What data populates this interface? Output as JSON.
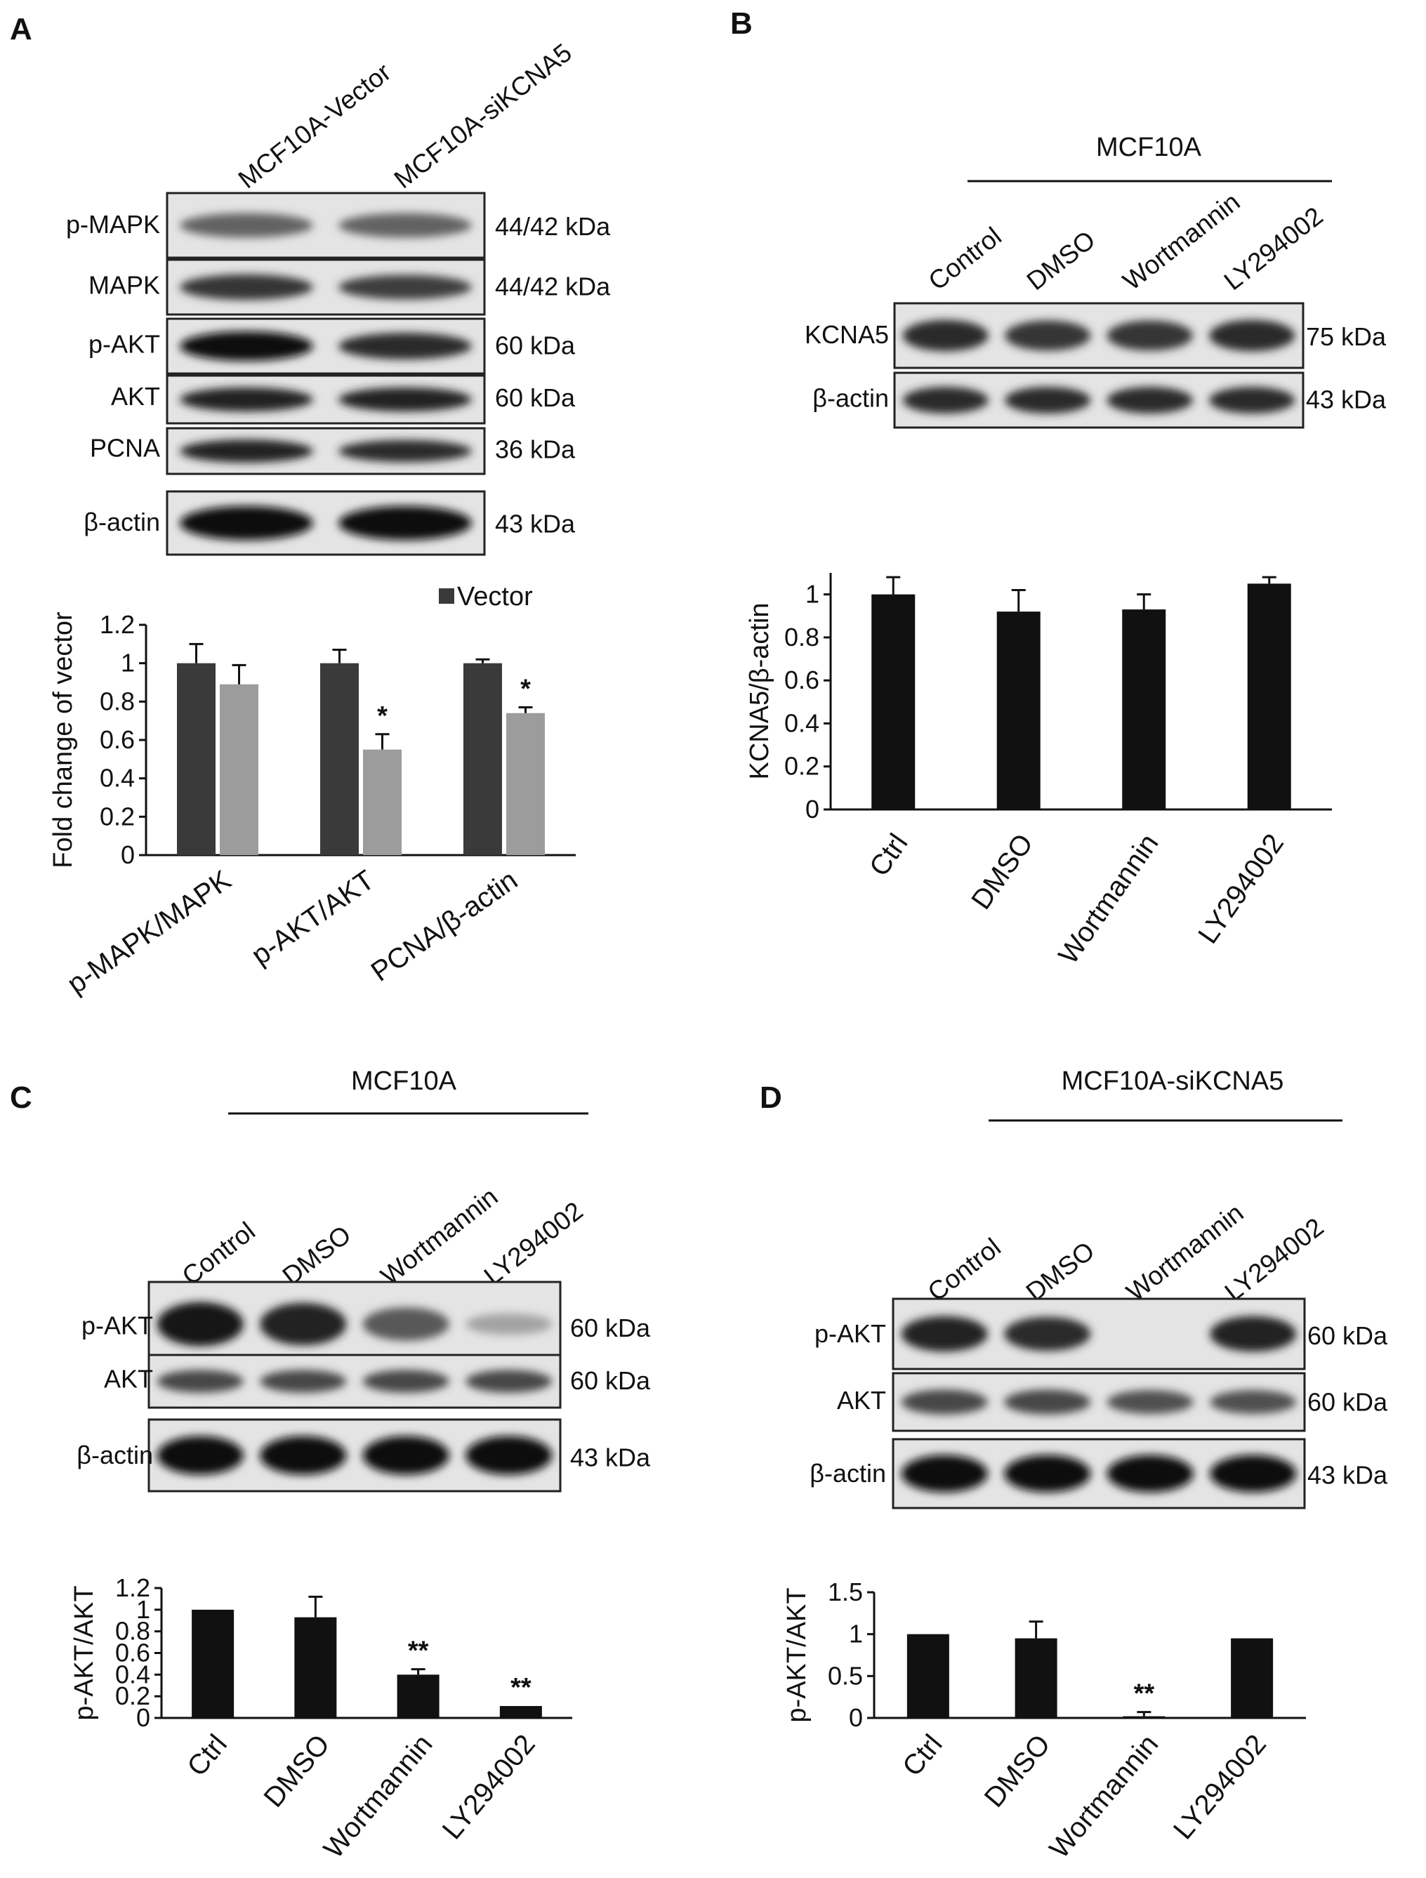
{
  "panels": {
    "A": {
      "label": "A",
      "lanes": [
        "MCF10A-Vector",
        "MCF10A-siKCNA5"
      ],
      "blots": [
        {
          "protein": "p-MAPK",
          "kda": "44/42 kDa",
          "bands": [
            0.55,
            0.55
          ]
        },
        {
          "protein": "MAPK",
          "kda": "44/42 kDa",
          "bands": [
            0.8,
            0.75
          ]
        },
        {
          "protein": "p-AKT",
          "kda": "60 kDa",
          "bands": [
            1.0,
            0.85
          ]
        },
        {
          "protein": "AKT",
          "kda": "60 kDa",
          "bands": [
            0.9,
            0.9
          ]
        },
        {
          "protein": "PCNA",
          "kda": "36 kDa",
          "bands": [
            0.9,
            0.85
          ]
        },
        {
          "protein": "β-actin",
          "kda": "43 kDa",
          "bands": [
            1.0,
            1.0
          ]
        }
      ]
    },
    "B": {
      "label": "B",
      "header": "MCF10A",
      "lanes": [
        "Control",
        "DMSO",
        "Wortmannin",
        "LY294002"
      ],
      "blots": [
        {
          "protein": "KCNA5",
          "kda": "75 kDa",
          "bands": [
            0.85,
            0.8,
            0.8,
            0.85
          ]
        },
        {
          "protein": "β-actin",
          "kda": "43 kDa",
          "bands": [
            0.85,
            0.85,
            0.85,
            0.85
          ]
        }
      ]
    },
    "C": {
      "label": "C",
      "header": "MCF10A",
      "lanes": [
        "Control",
        "DMSO",
        "Wortmannin",
        "LY294002"
      ],
      "blots": [
        {
          "protein": "p-AKT",
          "kda": "60 kDa",
          "bands": [
            0.95,
            0.9,
            0.6,
            0.2
          ]
        },
        {
          "protein": "AKT",
          "kda": "60 kDa",
          "bands": [
            0.7,
            0.7,
            0.7,
            0.7
          ]
        },
        {
          "protein": "β-actin",
          "kda": "43 kDa",
          "bands": [
            1.0,
            1.0,
            1.0,
            1.0
          ]
        }
      ]
    },
    "D": {
      "label": "D",
      "header": "MCF10A-siKCNA5",
      "lanes": [
        "Control",
        "DMSO",
        "Wortmannin",
        "LY294002"
      ],
      "blots": [
        {
          "protein": "p-AKT",
          "kda": "60 kDa",
          "bands": [
            0.9,
            0.85,
            0.0,
            0.9
          ]
        },
        {
          "protein": "AKT",
          "kda": "60 kDa",
          "bands": [
            0.7,
            0.7,
            0.65,
            0.65
          ]
        },
        {
          "protein": "β-actin",
          "kda": "43 kDa",
          "bands": [
            1.0,
            1.0,
            1.0,
            1.0
          ]
        }
      ]
    }
  },
  "chart_data": [
    {
      "panel": "A",
      "type": "bar",
      "categories": [
        "p-MAPK/MAPK",
        "p-AKT/AKT",
        "PCNA/β-actin"
      ],
      "series": [
        {
          "name": "Vector",
          "values": [
            1.0,
            1.0,
            1.0
          ],
          "errors": [
            0.1,
            0.07,
            0.02
          ],
          "color": "#3a3a3a"
        },
        {
          "name": "",
          "values": [
            0.89,
            0.55,
            0.74
          ],
          "errors": [
            0.1,
            0.08,
            0.03
          ],
          "color": "#9c9c9c"
        }
      ],
      "ylabel": "Fold change of vector",
      "ylim": [
        0,
        1.2
      ],
      "yticks": [
        "0",
        "0.2",
        "0.4",
        "0.6",
        "0.8",
        "1",
        "1.2"
      ],
      "annotations": [
        "",
        "*",
        "*"
      ],
      "legend": "top-right"
    },
    {
      "panel": "B",
      "type": "bar",
      "categories": [
        "Ctrl",
        "DMSO",
        "Wortmannin",
        "LY294002"
      ],
      "series": [
        {
          "name": "",
          "values": [
            1.0,
            0.92,
            0.93,
            1.05
          ],
          "errors": [
            0.08,
            0.1,
            0.07,
            0.03
          ],
          "color": "#111111"
        }
      ],
      "ylabel": "KCNA5/β-actin",
      "ylim": [
        0,
        1.1
      ],
      "yticks": [
        "0",
        "0.2",
        "0.4",
        "0.6",
        "0.8",
        "1"
      ],
      "annotations": [
        "",
        "",
        "",
        ""
      ]
    },
    {
      "panel": "C",
      "type": "bar",
      "categories": [
        "Ctrl",
        "DMSO",
        "Wortmannin",
        "LY294002"
      ],
      "series": [
        {
          "name": "",
          "values": [
            1.0,
            0.93,
            0.4,
            0.11
          ],
          "errors": [
            0.0,
            0.19,
            0.05,
            0.0
          ],
          "color": "#111111"
        }
      ],
      "ylabel": "p-AKT/AKT",
      "ylim": [
        0,
        1.2
      ],
      "yticks": [
        "0",
        "0.2",
        "0.4",
        "0.6",
        "0.8",
        "1",
        "1.2"
      ],
      "annotations": [
        "",
        "",
        "**",
        "**"
      ]
    },
    {
      "panel": "D",
      "type": "bar",
      "categories": [
        "Ctrl",
        "DMSO",
        "Wortmannin",
        "LY294002"
      ],
      "series": [
        {
          "name": "",
          "values": [
            1.0,
            0.95,
            0.02,
            0.95
          ],
          "errors": [
            0.0,
            0.2,
            0.05,
            0.0
          ],
          "color": "#111111"
        }
      ],
      "ylabel": "p-AKT/AKT",
      "ylim": [
        0,
        1.5
      ],
      "yticks": [
        "0",
        "0.5",
        "1",
        "1.5"
      ],
      "annotations": [
        "",
        "",
        "**",
        ""
      ]
    }
  ]
}
